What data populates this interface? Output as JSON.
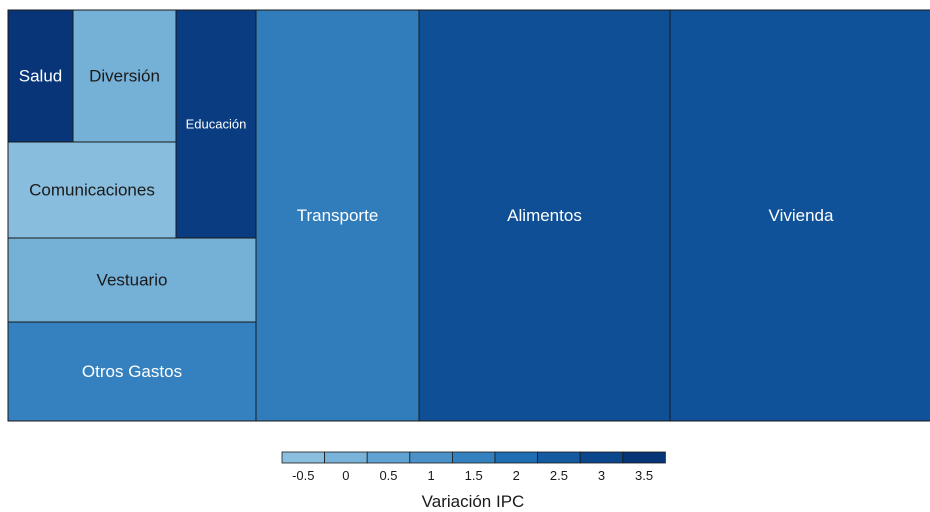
{
  "chart_data": {
    "type": "treemap",
    "title": "",
    "tiles": [
      {
        "label": "Vivienda",
        "value": 2.7
      },
      {
        "label": "Alimentos",
        "value": 2.8
      },
      {
        "label": "Transporte",
        "value": 1.6
      },
      {
        "label": "Otros Gastos",
        "value": 1.5
      },
      {
        "label": "Vestuario",
        "value": 0.1
      },
      {
        "label": "Comunicaciones",
        "value": -0.4
      },
      {
        "label": "Educación",
        "value": 3.3
      },
      {
        "label": "Diversión",
        "value": 0.1
      },
      {
        "label": "Salud",
        "value": 3.6
      }
    ],
    "color_scale": {
      "title": "Variación IPC",
      "ticks": [
        "-0.5",
        "0",
        "0.5",
        "1",
        "1.5",
        "2",
        "2.5",
        "3",
        "3.5"
      ],
      "colors": [
        "#8cbfdf",
        "#7ab3d9",
        "#60a2d1",
        "#4b91c8",
        "#3581bf",
        "#1f6db2",
        "#135aa1",
        "#0b478d",
        "#083478"
      ],
      "position": "bottom"
    }
  }
}
